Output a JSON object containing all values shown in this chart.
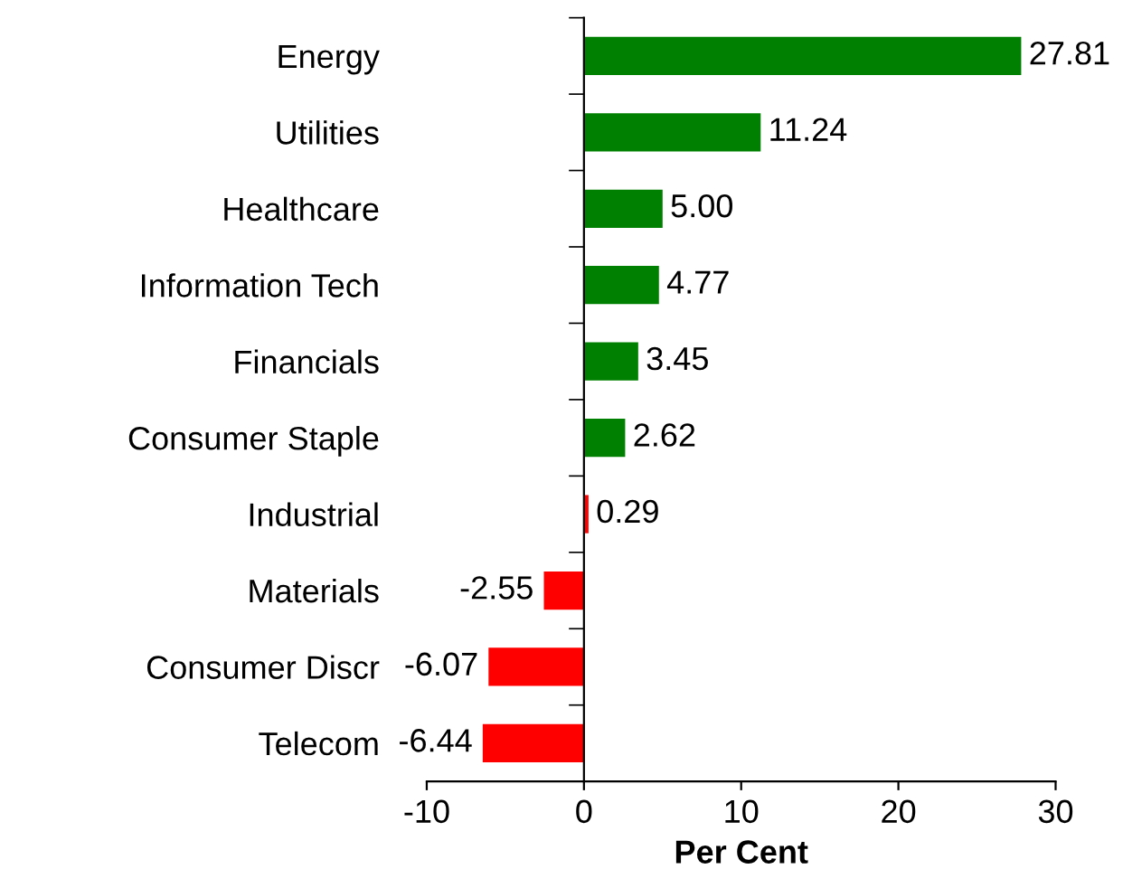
{
  "chart_data": {
    "type": "bar",
    "orientation": "horizontal",
    "xlabel": "Per Cent",
    "categories": [
      "Energy",
      "Utilities",
      "Healthcare",
      "Information Tech",
      "Financials",
      "Consumer Staple",
      "Industrial",
      "Materials",
      "Consumer Discr",
      "Telecom"
    ],
    "values": [
      27.81,
      11.24,
      5.0,
      4.77,
      3.45,
      2.62,
      0.29,
      -2.55,
      -6.07,
      -6.44
    ],
    "value_labels": [
      "27.81",
      "11.24",
      "5.00",
      "4.77",
      "3.45",
      "2.62",
      "0.29",
      "-2.55",
      "-6.07",
      "-6.44"
    ],
    "colors": [
      "#008000",
      "#008000",
      "#008000",
      "#008000",
      "#008000",
      "#008000",
      "#ff0000",
      "#ff0000",
      "#ff0000",
      "#ff0000"
    ],
    "xlim": [
      -10,
      30
    ],
    "xticks": [
      -10,
      0,
      10,
      20,
      30
    ]
  }
}
